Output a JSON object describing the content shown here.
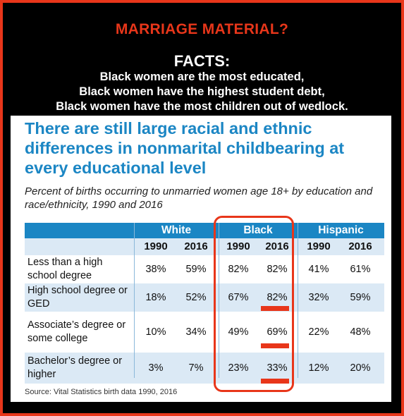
{
  "meme": {
    "title": "MARRIAGE MATERIAL?",
    "facts_label": "FACTS:",
    "facts": [
      "Black women are the most educated,",
      "Black women have the highest student debt,",
      "Black women have the most children out of wedlock."
    ]
  },
  "chart": {
    "headline": "There are still large racial and ethnic differences in nonmarital childbearing at every educational level",
    "subtitle": "Percent of births occurring to unmarried women age 18+ by education and race/ethnicity, 1990 and 2016",
    "groups": [
      "White",
      "Black",
      "Hispanic"
    ],
    "years": [
      "1990",
      "2016",
      "1990",
      "2016",
      "1990",
      "2016"
    ],
    "rows": [
      {
        "label": "Less than a high school degree",
        "values": [
          "38%",
          "59%",
          "82%",
          "82%",
          "41%",
          "61%"
        ]
      },
      {
        "label": "High school degree or GED",
        "values": [
          "18%",
          "52%",
          "67%",
          "82%",
          "32%",
          "59%"
        ]
      },
      {
        "label": "Associate’s degree or some college",
        "values": [
          "10%",
          "34%",
          "49%",
          "69%",
          "22%",
          "48%"
        ]
      },
      {
        "label": "Bachelor’s degree or higher",
        "values": [
          "3%",
          "7%",
          "23%",
          "33%",
          "12%",
          "20%"
        ]
      }
    ],
    "source": "Source: Vital Statistics birth data 1990, 2016"
  },
  "chart_data": {
    "type": "table",
    "title": "There are still large racial and ethnic differences in nonmarital childbearing at every educational level",
    "columns": [
      "White 1990",
      "White 2016",
      "Black 1990",
      "Black 2016",
      "Hispanic 1990",
      "Hispanic 2016"
    ],
    "categories": [
      "Less than a high school degree",
      "High school degree or GED",
      "Associate’s degree or some college",
      "Bachelor’s degree or higher"
    ],
    "series": [
      {
        "name": "White 1990",
        "values": [
          38,
          18,
          10,
          3
        ]
      },
      {
        "name": "White 2016",
        "values": [
          59,
          52,
          34,
          7
        ]
      },
      {
        "name": "Black 1990",
        "values": [
          82,
          67,
          49,
          23
        ]
      },
      {
        "name": "Black 2016",
        "values": [
          82,
          82,
          69,
          33
        ]
      },
      {
        "name": "Hispanic 1990",
        "values": [
          41,
          32,
          22,
          12
        ]
      },
      {
        "name": "Hispanic 2016",
        "values": [
          61,
          59,
          48,
          20
        ]
      }
    ]
  },
  "colors": {
    "accent_red": "#e8361a",
    "header_blue": "#1b86c4",
    "row_tint": "#dbe9f5"
  }
}
